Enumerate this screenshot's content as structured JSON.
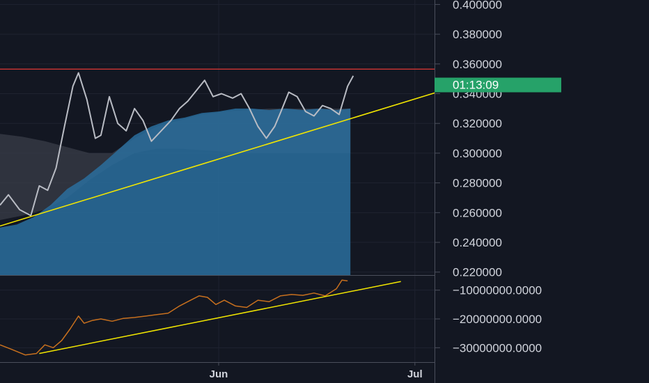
{
  "colors": {
    "background": "#131722",
    "grid": "#1f2330",
    "axis_line": "#4b4f5c",
    "axis_text": "#d1d4dc",
    "price_line": "#b9bcc4",
    "area_fill": "#2a6f9e",
    "cloud_fill": "#3a3d48",
    "resistance": "#e53935",
    "trendline": "#f2e600",
    "indicator_line": "#c8701e",
    "countdown_bg": "#26a269",
    "countdown_text": "#ffffff"
  },
  "countdown": "01:13:09",
  "chart_data": [
    {
      "type": "line",
      "pane": "price",
      "ylim": [
        0.218,
        0.403
      ],
      "y_ticks": [
        "0.400000",
        "0.380000",
        "0.360000",
        "0.340000",
        "0.320000",
        "0.300000",
        "0.280000",
        "0.260000",
        "0.240000",
        "0.220000"
      ],
      "y_tick_values": [
        0.4,
        0.38,
        0.36,
        0.34,
        0.32,
        0.3,
        0.28,
        0.26,
        0.24,
        0.22
      ],
      "x_ticks": [
        "Jun",
        "Jul"
      ],
      "x_tick_index": [
        78,
        148
      ],
      "x_range": [
        0,
        155
      ],
      "series": [
        {
          "role": "price",
          "x": [
            0,
            3,
            7,
            11,
            14,
            17,
            20,
            23,
            26,
            28,
            31,
            34,
            36,
            39,
            42,
            45,
            48,
            51,
            54,
            57,
            61,
            64,
            67,
            70,
            73,
            76,
            79,
            83,
            86,
            89,
            92,
            95,
            98,
            100,
            103,
            106,
            109,
            112,
            115,
            118,
            121,
            124,
            126
          ],
          "y": [
            0.265,
            0.272,
            0.262,
            0.258,
            0.278,
            0.275,
            0.29,
            0.318,
            0.345,
            0.354,
            0.336,
            0.31,
            0.312,
            0.338,
            0.32,
            0.315,
            0.33,
            0.322,
            0.308,
            0.314,
            0.322,
            0.33,
            0.335,
            0.342,
            0.349,
            0.338,
            0.34,
            0.337,
            0.34,
            0.33,
            0.318,
            0.31,
            0.318,
            0.327,
            0.341,
            0.338,
            0.328,
            0.325,
            0.332,
            0.33,
            0.326,
            0.345,
            0.352
          ]
        },
        {
          "role": "area",
          "x": [
            0,
            6,
            12,
            18,
            24,
            30,
            36,
            42,
            48,
            54,
            60,
            66,
            72,
            78,
            84,
            90,
            96,
            102,
            108,
            114,
            120,
            125
          ],
          "y": [
            0.25,
            0.252,
            0.257,
            0.265,
            0.276,
            0.283,
            0.292,
            0.302,
            0.312,
            0.318,
            0.322,
            0.324,
            0.327,
            0.328,
            0.33,
            0.33,
            0.329,
            0.33,
            0.329,
            0.33,
            0.329,
            0.33
          ]
        },
        {
          "role": "cloud_upper",
          "x": [
            0,
            8,
            16,
            24,
            32,
            40,
            48,
            56,
            64,
            72,
            80,
            88,
            96,
            104,
            112,
            120,
            125
          ],
          "y": [
            0.313,
            0.311,
            0.308,
            0.304,
            0.3,
            0.3,
            0.31,
            0.318,
            0.322,
            0.326,
            0.328,
            0.329,
            0.33,
            0.33,
            0.33,
            0.33,
            0.33
          ]
        },
        {
          "role": "cloud_lower",
          "x": [
            0,
            8,
            16,
            24,
            32,
            40,
            48,
            56,
            64,
            72,
            80,
            88,
            96,
            104,
            112,
            120,
            125
          ],
          "y": [
            0.255,
            0.258,
            0.262,
            0.27,
            0.282,
            0.292,
            0.3,
            0.303,
            0.303,
            0.302,
            0.301,
            0.3,
            0.3,
            0.3,
            0.3,
            0.3,
            0.3
          ]
        },
        {
          "role": "resistance",
          "x": [
            0,
            155
          ],
          "y": [
            0.3565,
            0.3565
          ]
        },
        {
          "role": "trendline",
          "x": [
            0,
            181
          ],
          "y": [
            0.251,
            0.3555
          ]
        }
      ]
    },
    {
      "type": "line",
      "pane": "indicator",
      "ylim": [
        -35000000,
        -5000000
      ],
      "y_ticks": [
        "−10000000.0000",
        "−20000000.0000",
        "−30000000.0000"
      ],
      "y_tick_values": [
        -10000000,
        -20000000,
        -30000000
      ],
      "series": [
        {
          "role": "indicator",
          "x": [
            0,
            4,
            9,
            13,
            16,
            19,
            22,
            25,
            28,
            30,
            33,
            36,
            40,
            44,
            48,
            52,
            56,
            60,
            64,
            68,
            71,
            74,
            77,
            80,
            84,
            88,
            92,
            96,
            100,
            104,
            108,
            112,
            116,
            120,
            122,
            124
          ],
          "y": [
            -29000000,
            -30500000,
            -32500000,
            -32000000,
            -29000000,
            -30000000,
            -27500000,
            -23500000,
            -19000000,
            -21500000,
            -20500000,
            -20000000,
            -20800000,
            -19800000,
            -19500000,
            -19000000,
            -18500000,
            -18000000,
            -15500000,
            -13500000,
            -12000000,
            -12500000,
            -15000000,
            -13500000,
            -15500000,
            -16000000,
            -13500000,
            -14000000,
            -12000000,
            -11500000,
            -11800000,
            -11000000,
            -12000000,
            -9500000,
            -6500000,
            -6800000
          ]
        },
        {
          "role": "trendline",
          "x": [
            14,
            143
          ],
          "y": [
            -32000000,
            -7000000
          ]
        }
      ]
    }
  ]
}
